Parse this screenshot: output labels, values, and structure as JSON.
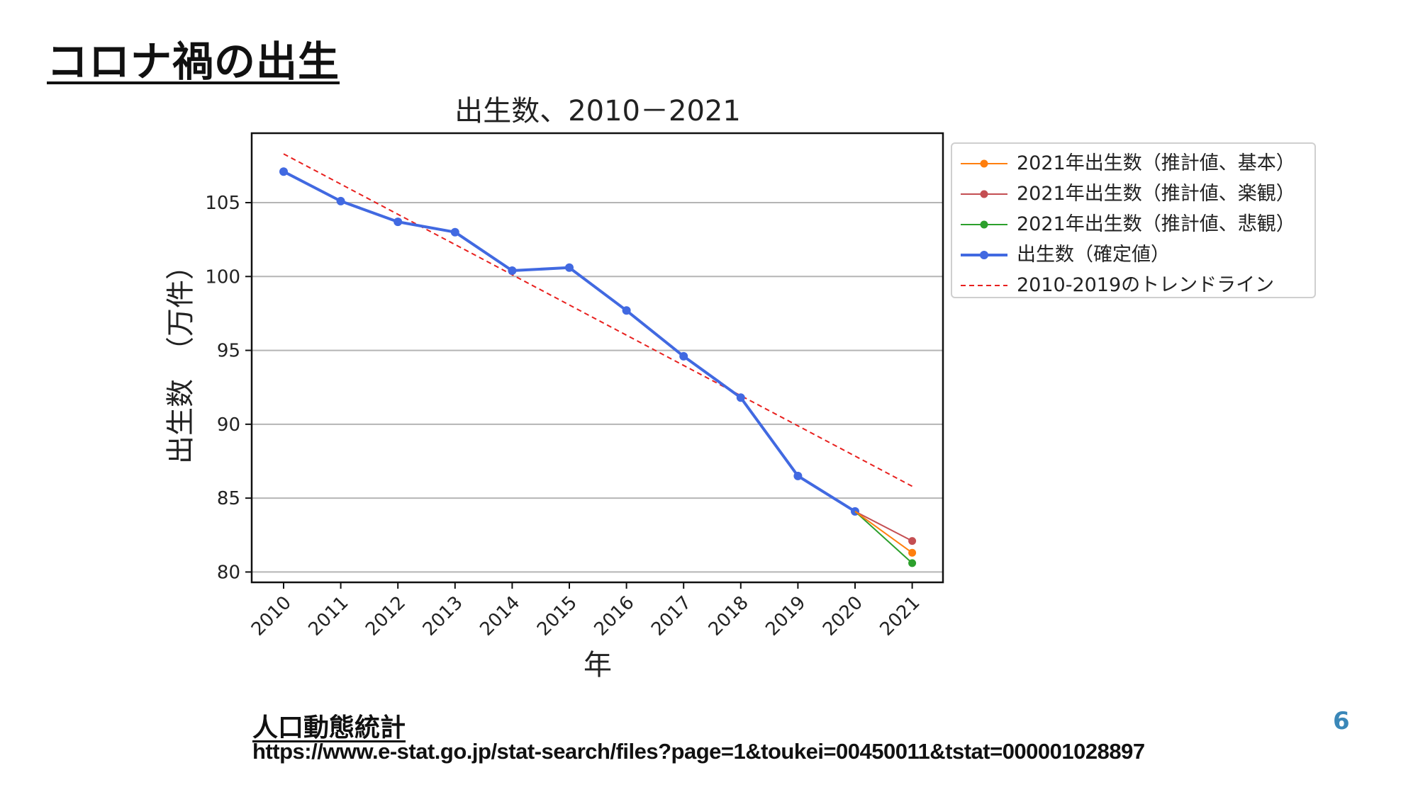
{
  "slide": {
    "title": "コロナ禍の出生",
    "source_title": "人口動態統計",
    "source_url": "https://www.e-stat.go.jp/stat-search/files?page=1&toukei=00450011&tstat=000001028897",
    "page_number": "6"
  },
  "chart_data": {
    "type": "line",
    "title": "出生数、2010－2021",
    "xlabel": "年",
    "ylabel": "出生数　（万件）",
    "categories": [
      "2010",
      "2011",
      "2012",
      "2013",
      "2014",
      "2015",
      "2016",
      "2017",
      "2018",
      "2019",
      "2020",
      "2021"
    ],
    "ylim": [
      79.3,
      109.7
    ],
    "yticks": [
      80,
      85,
      90,
      95,
      100,
      105
    ],
    "grid": "horizontal",
    "legend_position": "outside-right",
    "series": [
      {
        "name": "2021年出生数（推計値、基本）",
        "color": "#ff7f0e",
        "style": "solid-marker",
        "points": [
          [
            "2020",
            84.1
          ],
          [
            "2021",
            81.3
          ]
        ]
      },
      {
        "name": "2021年出生数（推計値、楽観）",
        "color": "#c44e52",
        "style": "solid-marker",
        "points": [
          [
            "2020",
            84.1
          ],
          [
            "2021",
            82.1
          ]
        ]
      },
      {
        "name": "2021年出生数（推計値、悲観）",
        "color": "#2ca02c",
        "style": "solid-marker",
        "points": [
          [
            "2020",
            84.1
          ],
          [
            "2021",
            80.6
          ]
        ]
      },
      {
        "name": "出生数（確定値）",
        "color": "#4169e1",
        "style": "bold-marker",
        "points": [
          [
            "2010",
            107.1
          ],
          [
            "2011",
            105.1
          ],
          [
            "2012",
            103.7
          ],
          [
            "2013",
            103.0
          ],
          [
            "2014",
            100.4
          ],
          [
            "2015",
            100.6
          ],
          [
            "2016",
            97.7
          ],
          [
            "2017",
            94.6
          ],
          [
            "2018",
            91.8
          ],
          [
            "2019",
            86.5
          ],
          [
            "2020",
            84.1
          ]
        ]
      },
      {
        "name": "2010-2019のトレンドライン",
        "color": "#e8201e",
        "style": "dashed",
        "points": [
          [
            "2010",
            108.3
          ],
          [
            "2021",
            85.8
          ]
        ]
      }
    ]
  }
}
